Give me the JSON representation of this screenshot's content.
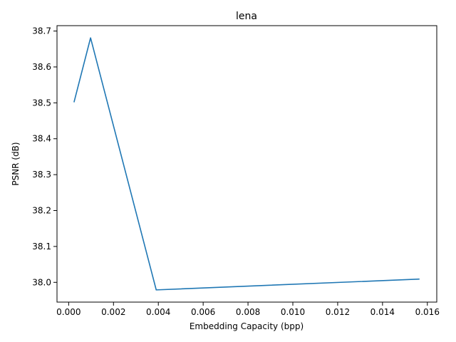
{
  "chart_data": {
    "type": "line",
    "title": "lena",
    "xlabel": "Embedding Capacity (bpp)",
    "ylabel": "PSNR (dB)",
    "xlim": [
      -0.00052,
      0.01642
    ],
    "ylim": [
      37.945,
      38.715
    ],
    "xticks": [
      "0.000",
      "0.002",
      "0.004",
      "0.006",
      "0.008",
      "0.010",
      "0.012",
      "0.014",
      "0.016"
    ],
    "yticks": [
      "38.0",
      "38.1",
      "38.2",
      "38.3",
      "38.4",
      "38.5",
      "38.6",
      "38.7"
    ],
    "grid": false,
    "series": [
      {
        "color": "#1f77b4",
        "x": [
          0.000244,
          0.000977,
          0.003906,
          0.015625
        ],
        "y": [
          38.503,
          38.681,
          37.979,
          38.009
        ]
      }
    ]
  }
}
